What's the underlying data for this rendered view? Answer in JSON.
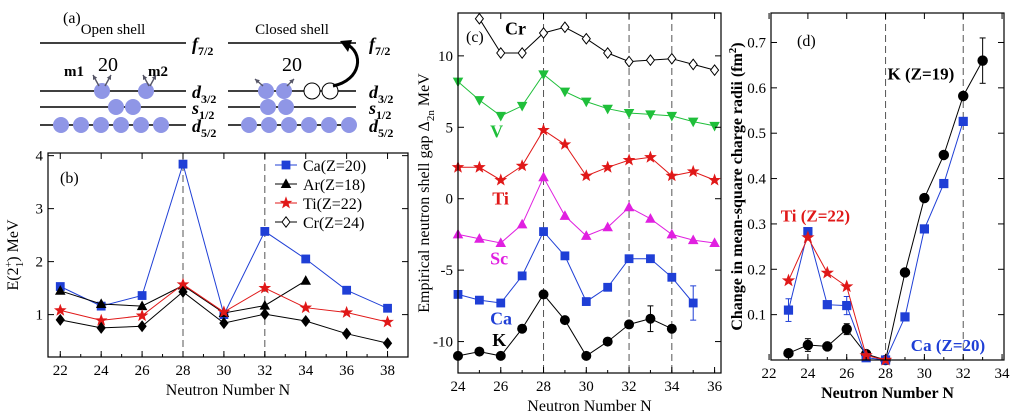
{
  "panel_a": {
    "label": "(a)",
    "open": {
      "title": "Open shell",
      "number": "20",
      "m1": "m1",
      "m2": "m2",
      "levels": [
        {
          "orb": "f",
          "sub": "7/2",
          "occ": 0,
          "holes": 0
        },
        {
          "orb": "d",
          "sub": "3/2",
          "occ": 2,
          "holes": 0
        },
        {
          "orb": "s",
          "sub": "1/2",
          "occ": 2,
          "holes": 0
        },
        {
          "orb": "d",
          "sub": "5/2",
          "occ": 6,
          "holes": 0
        }
      ]
    },
    "closed": {
      "title": "Closed shell",
      "number": "20",
      "levels": [
        {
          "orb": "f",
          "sub": "7/2",
          "occ": 0,
          "holes": 0
        },
        {
          "orb": "d",
          "sub": "3/2",
          "occ": 2,
          "holes": 2
        },
        {
          "orb": "s",
          "sub": "1/2",
          "occ": 2,
          "holes": 0
        },
        {
          "orb": "d",
          "sub": "5/2",
          "occ": 6,
          "holes": 0
        }
      ]
    },
    "colors": {
      "particle": "#8f96e6",
      "line": "#000000"
    }
  },
  "chart_data": [
    {
      "id": "b",
      "type": "line",
      "panel_label": "(b)",
      "xlabel": "Neutron Number N",
      "ylabel_main": "E(2",
      "ylabel_sup": "+",
      "ylabel_sub": "1",
      "ylabel_tail": ") MeV",
      "xlim": [
        21.4,
        39
      ],
      "ylim": [
        0.2,
        4.05
      ],
      "xticks": [
        22,
        24,
        26,
        28,
        30,
        32,
        34,
        36,
        38
      ],
      "yticks": [
        1,
        2,
        3,
        4
      ],
      "dashed_x": [
        28,
        32
      ],
      "series": [
        {
          "name": "Ca(Z=20)",
          "color": "#1f3fd6",
          "marker": "square",
          "x": [
            22,
            24,
            26,
            28,
            30,
            32,
            34,
            36,
            38
          ],
          "y": [
            1.53,
            1.16,
            1.36,
            3.84,
            1.0,
            2.57,
            2.05,
            1.46,
            1.12
          ]
        },
        {
          "name": "Ar(Z=18)",
          "color": "#000000",
          "marker": "triangle",
          "x": [
            22,
            24,
            26,
            28,
            30,
            32,
            34
          ],
          "y": [
            1.45,
            1.2,
            1.16,
            1.55,
            1.03,
            1.17,
            1.64
          ]
        },
        {
          "name": "Ti(Z=22)",
          "color": "#e01818",
          "marker": "star",
          "x": [
            22,
            24,
            26,
            28,
            30,
            32,
            34,
            36,
            38
          ],
          "y": [
            1.08,
            0.89,
            0.98,
            1.57,
            1.05,
            1.5,
            1.13,
            1.04,
            0.86
          ]
        },
        {
          "name": "Cr(Z=24)",
          "color": "#000000",
          "marker": "diamond",
          "x": [
            22,
            24,
            26,
            28,
            30,
            32,
            34,
            36,
            38
          ],
          "y": [
            0.9,
            0.75,
            0.78,
            1.43,
            0.84,
            1.01,
            0.88,
            0.64,
            0.46
          ]
        }
      ]
    },
    {
      "id": "c",
      "type": "line",
      "panel_label": "(c)",
      "xlabel": "Neutron Number N",
      "ylabel_main": "Empirical neutron shell gap Δ",
      "ylabel_sub": "2n",
      "ylabel_tail": " MeV",
      "xlim": [
        24,
        36.3
      ],
      "ylim": [
        -12.2,
        13
      ],
      "xticks": [
        24,
        26,
        28,
        30,
        32,
        34,
        36
      ],
      "yticks": [
        -10,
        -5,
        0,
        5,
        10
      ],
      "dashed_x": [
        28,
        32,
        34
      ],
      "series": [
        {
          "name": "Cr",
          "color": "#000000",
          "fill": "#ffffff",
          "marker": "diamond",
          "x": [
            25,
            26,
            27,
            28,
            29,
            30,
            31,
            32,
            33,
            34,
            35,
            36
          ],
          "y": [
            12.6,
            10.2,
            10.2,
            11.6,
            12.0,
            11.2,
            10.2,
            9.6,
            9.7,
            9.8,
            9.4,
            9.0
          ],
          "label_at": [
            26.2,
            11.5
          ]
        },
        {
          "name": "V",
          "color": "#1fbf3a",
          "marker": "triangle_down",
          "x": [
            24,
            25,
            26,
            27,
            28,
            29,
            30,
            31,
            32,
            33,
            34,
            35,
            36
          ],
          "y": [
            8.2,
            6.9,
            5.8,
            6.5,
            8.7,
            7.5,
            6.8,
            6.3,
            6.0,
            5.9,
            5.8,
            5.4,
            5.1
          ],
          "label_at": [
            25.5,
            4.3
          ]
        },
        {
          "name": "Ti",
          "color": "#e01818",
          "marker": "star",
          "x": [
            24,
            25,
            26,
            27,
            28,
            29,
            30,
            31,
            32,
            33,
            34,
            35,
            36
          ],
          "y": [
            2.2,
            2.2,
            1.3,
            2.3,
            4.8,
            3.8,
            1.6,
            2.2,
            2.7,
            2.9,
            1.6,
            1.9,
            1.3
          ],
          "label_at": [
            25.6,
            -0.4
          ]
        },
        {
          "name": "Sc",
          "color": "#e020e0",
          "marker": "triangle",
          "x": [
            24,
            25,
            26,
            27,
            28,
            29,
            30,
            31,
            32,
            33,
            34,
            35,
            36
          ],
          "y": [
            -2.5,
            -2.8,
            -3.1,
            -1.8,
            1.5,
            -1.2,
            -2.6,
            -2.0,
            -0.6,
            -1.4,
            -2.5,
            -2.9,
            -3.1
          ],
          "label_at": [
            25.5,
            -4.6
          ]
        },
        {
          "name": "Ca",
          "color": "#1f3fd6",
          "marker": "square",
          "x": [
            24,
            25,
            26,
            27,
            28,
            29,
            30,
            31,
            32,
            33,
            34,
            35
          ],
          "y": [
            -6.7,
            -7.1,
            -7.3,
            -5.4,
            -2.3,
            -4.0,
            -7.2,
            -6.2,
            -4.2,
            -4.2,
            -5.5,
            -7.3
          ],
          "err": [
            0,
            0,
            0,
            0,
            0,
            0,
            0,
            0,
            0,
            0,
            0,
            1.2
          ],
          "label_at": [
            25.5,
            -8.8
          ]
        },
        {
          "name": "K",
          "color": "#000000",
          "marker": "circle",
          "x": [
            24,
            25,
            26,
            27,
            28,
            29,
            30,
            31,
            32,
            33,
            34
          ],
          "y": [
            -11.0,
            -10.7,
            -11.0,
            -9.1,
            -6.7,
            -8.5,
            -11.0,
            -10.0,
            -8.8,
            -8.4,
            -9.1
          ],
          "err": [
            0,
            0,
            0,
            0,
            0,
            0,
            0,
            0,
            0,
            0.9,
            0
          ],
          "label_at": [
            25.6,
            -10.3
          ]
        }
      ]
    },
    {
      "id": "d",
      "type": "line",
      "panel_label": "(d)",
      "xlabel": "Neutron Number N",
      "ylabel_main": "Change in mean-square charge radii (fm",
      "ylabel_sup": "2",
      "ylabel_tail": ")",
      "xlim": [
        22.1,
        34.1
      ],
      "ylim": [
        0,
        0.765
      ],
      "xticks": [
        22,
        24,
        26,
        28,
        30,
        32,
        34
      ],
      "yticks": [
        0.1,
        0.2,
        0.3,
        0.4,
        0.5,
        0.6,
        0.7
      ],
      "dashed_x": [
        28,
        32
      ],
      "series": [
        {
          "name": "K (Z=19)",
          "color": "#000000",
          "marker": "circle",
          "x": [
            23,
            24,
            25,
            26,
            27,
            28,
            29,
            30,
            31,
            32,
            33
          ],
          "y": [
            0.015,
            0.033,
            0.03,
            0.068,
            0.013,
            0.0,
            0.193,
            0.357,
            0.452,
            0.582,
            0.66
          ],
          "err": [
            0,
            0.014,
            0,
            0.012,
            0,
            0,
            0,
            0,
            0,
            0,
            0.05
          ],
          "label_at": [
            28.1,
            0.618
          ],
          "label_color": "#000000"
        },
        {
          "name": "Ca (Z=20)",
          "color": "#1f3fd6",
          "marker": "square",
          "x": [
            23,
            24,
            25,
            26,
            27,
            28,
            29,
            30,
            31,
            32
          ],
          "y": [
            0.11,
            0.283,
            0.122,
            0.12,
            0.005,
            0.0,
            0.095,
            0.289,
            0.389,
            0.526
          ],
          "err": [
            0.025,
            0,
            0,
            0.02,
            0,
            0,
            0,
            0,
            0,
            0
          ],
          "label_at": [
            29.3,
            0.02
          ],
          "label_color": "#1f3fd6"
        },
        {
          "name": "Ti (Z=22)",
          "color": "#e01818",
          "marker": "star",
          "x": [
            23,
            24,
            25,
            26,
            27,
            28
          ],
          "y": [
            0.175,
            0.27,
            0.192,
            0.162,
            0.01,
            0.0
          ],
          "label_at": [
            22.6,
            0.305
          ],
          "label_color": "#e01818"
        }
      ]
    }
  ]
}
